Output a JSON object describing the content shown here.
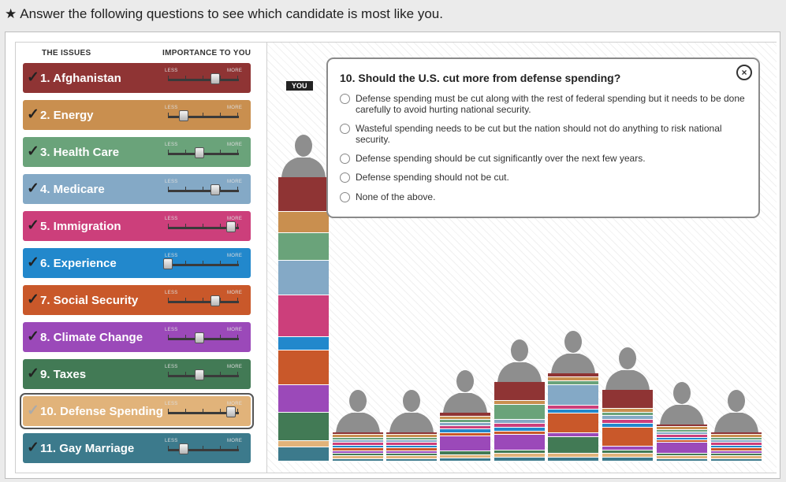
{
  "header": {
    "star": "★",
    "text": "Answer the following questions to see which candidate is most like you."
  },
  "columns": {
    "issues": "THE ISSUES",
    "importance": "IMPORTANCE TO YOU"
  },
  "slider_labels": {
    "less": "LESS",
    "more": "MORE"
  },
  "issues": [
    {
      "label": "1. Afghanistan",
      "color": "#8f3434",
      "importance": 0.75,
      "active": false
    },
    {
      "label": "2. Energy",
      "color": "#c98f4f",
      "importance": 0.25,
      "active": false
    },
    {
      "label": "3. Health Care",
      "color": "#6aa37a",
      "importance": 0.5,
      "active": false
    },
    {
      "label": "4. Medicare",
      "color": "#84a9c6",
      "importance": 0.75,
      "active": false
    },
    {
      "label": "5. Immigration",
      "color": "#cc3f7b",
      "importance": 1.0,
      "active": false
    },
    {
      "label": "6. Experience",
      "color": "#2288cc",
      "importance": 0.0,
      "active": false
    },
    {
      "label": "7. Social Security",
      "color": "#c9582a",
      "importance": 0.75,
      "active": false
    },
    {
      "label": "8. Climate Change",
      "color": "#9b49b9",
      "importance": 0.5,
      "active": false
    },
    {
      "label": "9. Taxes",
      "color": "#427a55",
      "importance": 0.5,
      "active": false
    },
    {
      "label": "10. Defense Spending",
      "color": "#e1b37a",
      "importance": 1.0,
      "active": true
    },
    {
      "label": "11. Gay Marriage",
      "color": "#3c7a8c",
      "importance": 0.25,
      "active": false
    }
  ],
  "you_label": "YOU",
  "question": {
    "title": "10. Should the U.S. cut more from defense spending?",
    "close_icon": "close-circle-icon",
    "options": [
      "Defense spending must be cut along with the rest of federal spending but it needs to be done carefully to avoid hurting national security.",
      "Wasteful spending needs to be cut but the nation should not do anything to risk national security.",
      "Defense spending should be cut significantly over the next few years.",
      "Defense spending should not be cut.",
      "None of the above."
    ]
  },
  "candidates": [
    {
      "id": "you",
      "segments": [
        1,
        0.6,
        0.8,
        1,
        1.2,
        0.4,
        1,
        0.8,
        0.8,
        0.2,
        0.4
      ]
    },
    {
      "id": "c1",
      "segments": [
        0.3,
        0.3,
        0.3,
        0.3,
        0.3,
        0.3,
        0.3,
        0.3,
        0.3,
        0.3,
        0.3
      ]
    },
    {
      "id": "c2",
      "segments": [
        0.3,
        0.3,
        0.3,
        0.3,
        0.3,
        0.3,
        0.3,
        0.3,
        0.3,
        0.3,
        0.3
      ]
    },
    {
      "id": "c3",
      "segments": [
        0.3,
        0.3,
        0.3,
        0.3,
        0.3,
        0.3,
        0.3,
        1.4,
        0.3,
        0.3,
        0.3
      ]
    },
    {
      "id": "c4",
      "segments": [
        1.5,
        0.3,
        1.2,
        0.3,
        0.3,
        0.3,
        0.3,
        1.2,
        0.3,
        0.3,
        0.3
      ]
    },
    {
      "id": "c5",
      "segments": [
        0.3,
        0.3,
        0.3,
        1.5,
        0.3,
        0.3,
        1.5,
        0.3,
        1.2,
        0.3,
        0.3
      ]
    },
    {
      "id": "c6",
      "segments": [
        1.5,
        0.3,
        0.3,
        0.3,
        0.3,
        0.3,
        1.5,
        0.3,
        0.3,
        0.3,
        0.3
      ]
    },
    {
      "id": "c7",
      "segments": [
        0.3,
        0.3,
        0.3,
        0.3,
        0.3,
        0.3,
        0.3,
        1.2,
        0.3,
        0.3,
        0.3
      ]
    },
    {
      "id": "c8",
      "segments": [
        0.3,
        0.3,
        0.3,
        0.3,
        0.3,
        0.3,
        0.3,
        0.3,
        0.3,
        0.3,
        0.3
      ]
    }
  ]
}
